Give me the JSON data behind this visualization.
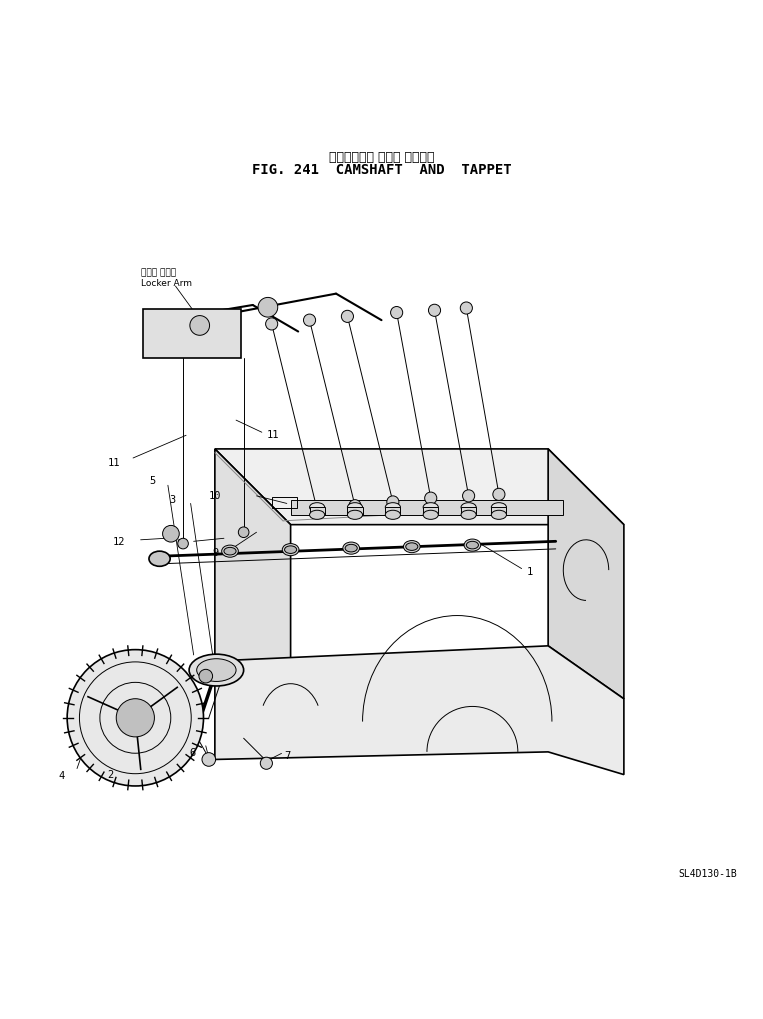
{
  "title_japanese": "カムシャフト および タペット",
  "title_english": "FIG. 241  CAMSHAFT  AND  TAPPET",
  "part_number": "SL4D130-1B",
  "background_color": "#ffffff",
  "line_color": "#000000",
  "fig_width": 7.63,
  "fig_height": 10.19,
  "dpi": 100,
  "rocker_arm_label_jp": "ロッカ アーム",
  "rocker_arm_label_en": "Locker Arm"
}
